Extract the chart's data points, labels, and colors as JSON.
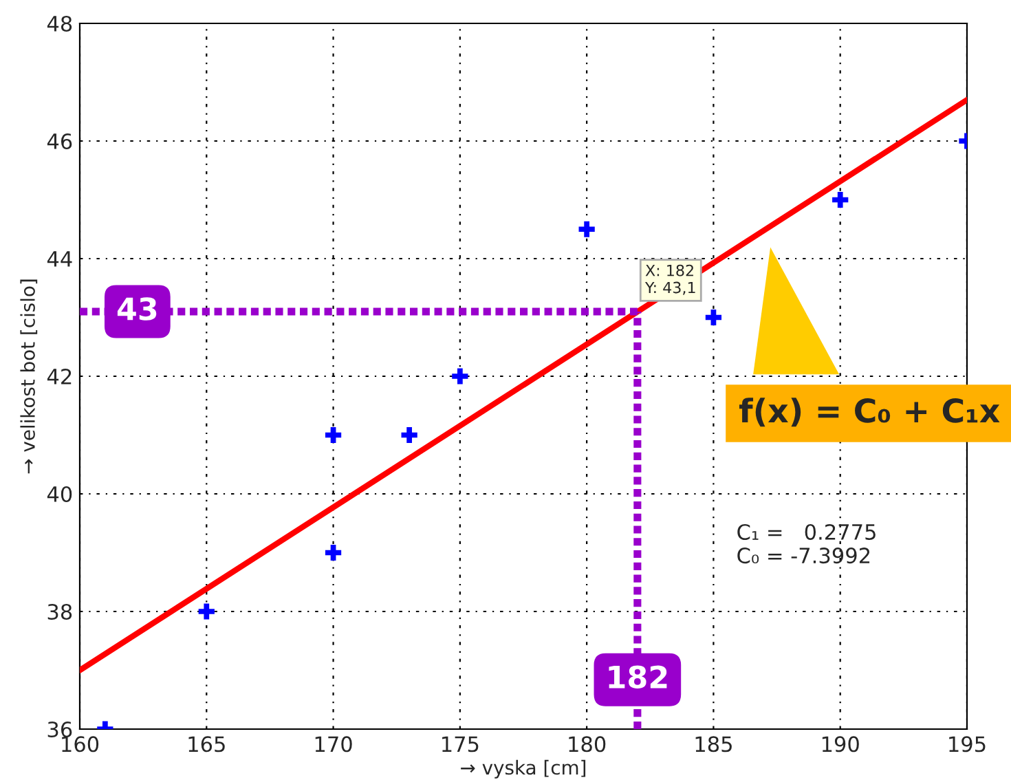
{
  "chart_data": {
    "type": "scatter",
    "xlabel": "→ vyska [cm]",
    "ylabel": "→ velikost bot [cislo]",
    "xlim": [
      160,
      195
    ],
    "xticks": [
      160,
      165,
      170,
      175,
      180,
      185,
      190,
      195
    ],
    "ylim": [
      36,
      48
    ],
    "yticks": [
      36,
      38,
      40,
      42,
      44,
      46,
      48
    ],
    "grid": true,
    "series": [
      {
        "marker": "cross",
        "color": "#0000ff",
        "x": [
          161,
          165,
          170,
          170,
          173,
          175,
          180,
          185,
          190,
          195
        ],
        "values": [
          36,
          38,
          41,
          39,
          41,
          42,
          44.5,
          43,
          45,
          46
        ]
      },
      {
        "type": "line",
        "marker": "none",
        "color": "#ff0000",
        "line_style": "solid",
        "x": [
          160,
          195
        ],
        "values": [
          37.0,
          46.7
        ]
      }
    ],
    "ref_lines": [
      {
        "axis": "y",
        "value": 43.1,
        "label": "43",
        "color": "#9900cc",
        "line_style": "dotted"
      },
      {
        "axis": "x",
        "value": 182,
        "label": "182",
        "color": "#9900cc",
        "line_style": "dotted"
      }
    ],
    "annotations": [
      {
        "text": "X: 182\nY: 43,1",
        "x": 182,
        "y": 43.1
      },
      "f(x) = C₀ + C₁x",
      "C₁ =   0.2775\nC₀ = -7.3992"
    ]
  }
}
